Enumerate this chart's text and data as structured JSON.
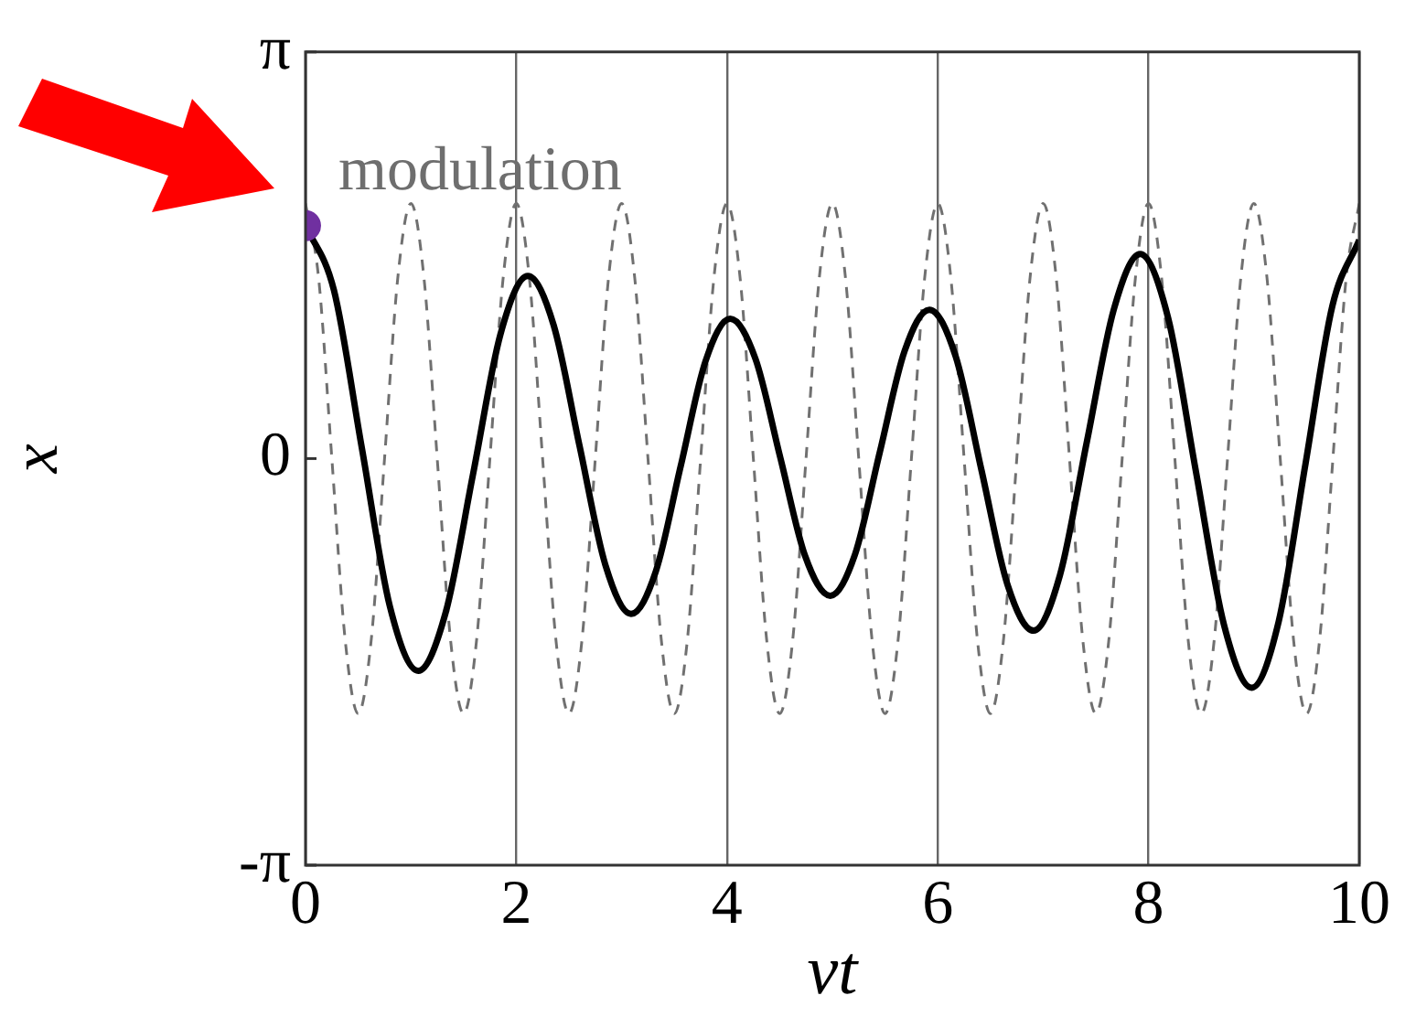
{
  "chart_data": {
    "type": "line",
    "xlabel": "νt",
    "ylabel": "x",
    "xlim": [
      0,
      10
    ],
    "xticks": [
      0,
      2,
      4,
      6,
      8,
      10
    ],
    "ylim": [
      -3.1416,
      3.1416
    ],
    "yticks": [
      {
        "value": -3.1416,
        "label": "-π"
      },
      {
        "value": 0,
        "label": "0"
      },
      {
        "value": 3.1416,
        "label": "π"
      }
    ],
    "grid": "x",
    "legend": false,
    "annotations": [
      "modulation"
    ],
    "series": [
      {
        "color": "#707070",
        "line_style": "dashed",
        "marker": "none",
        "x": [
          0,
          0.125,
          0.25,
          0.375,
          0.5,
          0.625,
          0.75,
          0.875,
          1,
          1.125,
          1.25,
          1.375,
          1.5,
          1.625,
          1.75,
          1.875,
          2,
          2.125,
          2.25,
          2.375,
          2.5,
          2.625,
          2.75,
          2.875,
          3,
          3.125,
          3.25,
          3.375,
          3.5,
          3.625,
          3.75,
          3.875,
          4,
          4.125,
          4.25,
          4.375,
          4.5,
          4.625,
          4.75,
          4.875,
          5,
          5.125,
          5.25,
          5.375,
          5.5,
          5.625,
          5.75,
          5.875,
          6,
          6.125,
          6.25,
          6.375,
          6.5,
          6.625,
          6.75,
          6.875,
          7,
          7.125,
          7.25,
          7.375,
          7.5,
          7.625,
          7.75,
          7.875,
          8,
          8.125,
          8.25,
          8.375,
          8.5,
          8.625,
          8.75,
          8.875,
          9,
          9.125,
          9.25,
          9.375,
          9.5,
          9.625,
          9.75,
          9.875,
          10
        ],
        "values": [
          1.97,
          1.39,
          0,
          -1.39,
          -1.97,
          -1.39,
          0,
          1.39,
          1.97,
          1.39,
          0,
          -1.39,
          -1.97,
          -1.39,
          0,
          1.39,
          1.97,
          1.39,
          0,
          -1.39,
          -1.97,
          -1.39,
          0,
          1.39,
          1.97,
          1.39,
          0,
          -1.39,
          -1.97,
          -1.39,
          0,
          1.39,
          1.97,
          1.39,
          0,
          -1.39,
          -1.97,
          -1.39,
          0,
          1.39,
          1.97,
          1.39,
          0,
          -1.39,
          -1.97,
          -1.39,
          0,
          1.39,
          1.97,
          1.39,
          0,
          -1.39,
          -1.97,
          -1.39,
          0,
          1.39,
          1.97,
          1.39,
          0,
          -1.39,
          -1.97,
          -1.39,
          0,
          1.39,
          1.97,
          1.39,
          0,
          -1.39,
          -1.97,
          -1.39,
          0,
          1.39,
          1.97,
          1.39,
          0,
          -1.39,
          -1.97,
          -1.39,
          0,
          1.39,
          1.97
        ]
      },
      {
        "color": "#000000",
        "line_style": "solid",
        "marker": "none",
        "x": [
          0,
          0.27,
          0.535,
          0.8,
          1.07,
          1.33,
          1.59,
          1.85,
          2.11,
          2.355,
          2.6,
          2.845,
          3.09,
          3.325,
          3.56,
          3.795,
          4.03,
          4.27,
          4.505,
          4.74,
          4.98,
          5.215,
          5.45,
          5.685,
          5.92,
          6.17,
          6.415,
          6.66,
          6.91,
          7.16,
          7.415,
          7.67,
          7.92,
          8.185,
          8.45,
          8.715,
          8.98,
          9.235,
          9.49,
          9.745,
          10
        ],
        "values": [
          1.8,
          1.3,
          0.08,
          -1.14,
          -1.64,
          -1.19,
          -0.12,
          0.96,
          1.41,
          1.03,
          0.1,
          -0.82,
          -1.2,
          -0.87,
          -0.06,
          0.75,
          1.08,
          0.77,
          0.01,
          -0.75,
          -1.06,
          -0.74,
          0.05,
          0.83,
          1.15,
          0.79,
          -0.09,
          -0.97,
          -1.33,
          -0.9,
          0.13,
          1.15,
          1.58,
          1.09,
          -0.1,
          -1.28,
          -1.77,
          -1.26,
          -0.04,
          1.18,
          1.69
        ]
      },
      {
        "type": "scatter",
        "color": "#7030a0",
        "marker": "circle",
        "x": [
          0
        ],
        "values": [
          1.8
        ]
      }
    ]
  }
}
